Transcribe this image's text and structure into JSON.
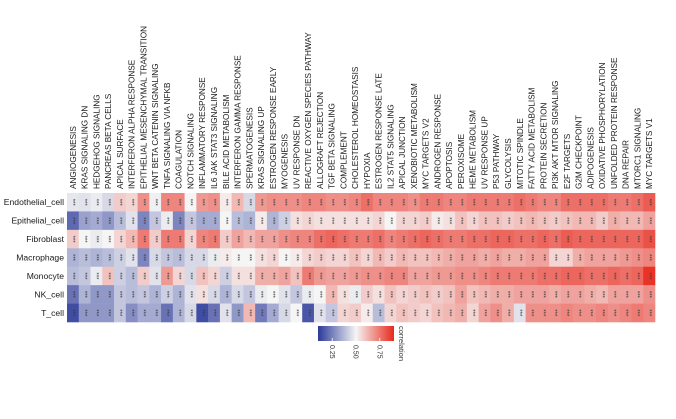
{
  "chart_data": {
    "type": "heatmap",
    "title": "",
    "rows": [
      "Endothelial_cell",
      "Epithelial_cell",
      "Fibroblast",
      "Macrophage",
      "Monocyte",
      "NK_cell",
      "T_cell"
    ],
    "columns": [
      "ANGIOGENESIS",
      "KRAS SIGNALING DN",
      "HEDGEHOG SIGNALING",
      "PANCREAS BETA CELLS",
      "APICAL SURFACE",
      "INTERFERON ALPHA RESPONSE",
      "EPITHELIAL MESENCHYMAL TRANSITION",
      "WNT BETA CATENIN SIGNALING",
      "TNFA SIGNALING VIA NFKB",
      "COAGULATION",
      "NOTCH SIGNALING",
      "INFLAMMATORY RESPONSE",
      "IL6 JAK STAT3 SIGNALING",
      "BILE ACID METABOLISM",
      "INTERFERON GAMMA RESPONSE",
      "SPERMATOGENESIS",
      "KRAS SIGNALING UP",
      "ESTROGEN RESPONSE EARLY",
      "MYOGENESIS",
      "UV RESPONSE DN",
      "REACTIVE OXYGEN SPECIES PATHWAY",
      "ALLOGRAFT REJECTION",
      "TGF BETA SIGNALING",
      "COMPLEMENT",
      "CHOLESTEROL HOMEOSTASIS",
      "HYPOXIA",
      "ESTROGEN RESPONSE LATE",
      "IL2 STAT5 SIGNALING",
      "APICAL JUNCTION",
      "XENOBIOTIC METABOLISM",
      "MYC TARGETS V2",
      "ANDROGEN RESPONSE",
      "APOPTOSIS",
      "PEROXISOME",
      "HEME METABOLISM",
      "UV RESPONSE UP",
      "P53 PATHWAY",
      "GLYCOLYSIS",
      "MITOTIC SPINDLE",
      "FATTY ACID METABOLISM",
      "PROTEIN SECRETION",
      "PI3K AKT MTOR SIGNALING",
      "E2F TARGETS",
      "G2M CHECKPOINT",
      "ADIPOGENESIS",
      "OXIDATIVE PHOSPHORYLATION",
      "UNFOLDED PROTEIN RESPONSE",
      "DNA REPAIR",
      "MTORC1 SIGNALING",
      "MYC TARGETS V1"
    ],
    "values": [
      [
        0.47,
        0.46,
        0.48,
        0.44,
        0.58,
        0.56,
        0.7,
        0.49,
        0.72,
        0.72,
        0.5,
        0.68,
        0.7,
        0.52,
        0.62,
        0.44,
        0.68,
        0.7,
        0.7,
        0.7,
        0.72,
        0.72,
        0.7,
        0.7,
        0.72,
        0.76,
        0.72,
        0.72,
        0.72,
        0.7,
        0.74,
        0.74,
        0.72,
        0.72,
        0.74,
        0.74,
        0.74,
        0.74,
        0.76,
        0.74,
        0.72,
        0.72,
        0.76,
        0.76,
        0.76,
        0.76,
        0.74,
        0.74,
        0.76,
        0.8
      ],
      [
        0.2,
        0.32,
        0.34,
        0.3,
        0.38,
        0.46,
        0.26,
        0.4,
        0.48,
        0.26,
        0.4,
        0.34,
        0.34,
        0.5,
        0.38,
        0.36,
        0.52,
        0.36,
        0.42,
        0.54,
        0.56,
        0.54,
        0.54,
        0.54,
        0.54,
        0.54,
        0.56,
        0.5,
        0.56,
        0.56,
        0.58,
        0.52,
        0.54,
        0.6,
        0.56,
        0.6,
        0.6,
        0.58,
        0.6,
        0.62,
        0.6,
        0.58,
        0.6,
        0.62,
        0.62,
        0.58,
        0.64,
        0.62,
        0.62,
        0.66
      ],
      [
        0.58,
        0.5,
        0.48,
        0.5,
        0.56,
        0.62,
        0.74,
        0.58,
        0.74,
        0.74,
        0.56,
        0.72,
        0.74,
        0.58,
        0.66,
        0.62,
        0.66,
        0.66,
        0.7,
        0.72,
        0.72,
        0.76,
        0.78,
        0.76,
        0.74,
        0.74,
        0.76,
        0.72,
        0.74,
        0.76,
        0.78,
        0.76,
        0.74,
        0.74,
        0.76,
        0.76,
        0.78,
        0.78,
        0.76,
        0.76,
        0.78,
        0.76,
        0.8,
        0.78,
        0.78,
        0.78,
        0.78,
        0.78,
        0.78,
        0.82
      ],
      [
        0.36,
        0.38,
        0.36,
        0.38,
        0.42,
        0.46,
        0.26,
        0.44,
        0.4,
        0.38,
        0.44,
        0.44,
        0.48,
        0.52,
        0.5,
        0.5,
        0.54,
        0.56,
        0.5,
        0.52,
        0.56,
        0.58,
        0.56,
        0.56,
        0.6,
        0.56,
        0.62,
        0.58,
        0.62,
        0.6,
        0.6,
        0.62,
        0.64,
        0.66,
        0.66,
        0.64,
        0.66,
        0.64,
        0.64,
        0.66,
        0.66,
        0.56,
        0.56,
        0.64,
        0.66,
        0.66,
        0.66,
        0.68,
        0.7,
        0.72
      ],
      [
        0.38,
        0.4,
        0.48,
        0.6,
        0.42,
        0.38,
        0.58,
        0.46,
        0.68,
        0.56,
        0.44,
        0.6,
        0.56,
        0.42,
        0.54,
        0.54,
        0.64,
        0.64,
        0.66,
        0.6,
        0.74,
        0.68,
        0.66,
        0.66,
        0.68,
        0.7,
        0.7,
        0.72,
        0.72,
        0.66,
        0.66,
        0.68,
        0.68,
        0.7,
        0.7,
        0.72,
        0.74,
        0.74,
        0.74,
        0.74,
        0.76,
        0.76,
        0.78,
        0.78,
        0.76,
        0.76,
        0.78,
        0.76,
        0.78,
        0.88
      ],
      [
        0.22,
        0.36,
        0.3,
        0.3,
        0.4,
        0.38,
        0.4,
        0.36,
        0.42,
        0.36,
        0.46,
        0.54,
        0.44,
        0.36,
        0.44,
        0.4,
        0.48,
        0.5,
        0.46,
        0.4,
        0.48,
        0.5,
        0.62,
        0.54,
        0.48,
        0.58,
        0.54,
        0.6,
        0.56,
        0.58,
        0.6,
        0.58,
        0.6,
        0.66,
        0.6,
        0.62,
        0.64,
        0.64,
        0.66,
        0.66,
        0.66,
        0.64,
        0.66,
        0.66,
        0.64,
        0.62,
        0.66,
        0.66,
        0.66,
        0.7
      ],
      [
        0.14,
        0.3,
        0.3,
        0.3,
        0.4,
        0.28,
        0.34,
        0.34,
        0.22,
        0.36,
        0.44,
        0.14,
        0.22,
        0.46,
        0.3,
        0.62,
        0.24,
        0.34,
        0.44,
        0.5,
        0.16,
        0.46,
        0.4,
        0.56,
        0.58,
        0.52,
        0.38,
        0.56,
        0.6,
        0.58,
        0.56,
        0.6,
        0.62,
        0.64,
        0.56,
        0.66,
        0.7,
        0.64,
        0.46,
        0.7,
        0.7,
        0.7,
        0.72,
        0.7,
        0.7,
        0.72,
        0.7,
        0.72,
        0.74,
        0.72
      ]
    ],
    "cell_annotation": "***",
    "colorbar": {
      "title": "correlation",
      "ticks": [
        "0.25",
        "0.50",
        "0.75"
      ],
      "range": [
        0.1,
        0.9
      ],
      "low_color": "#2b3a9a",
      "mid_color": "#f5f5f5",
      "high_color": "#e8291c",
      "midpoint": 0.5
    }
  }
}
